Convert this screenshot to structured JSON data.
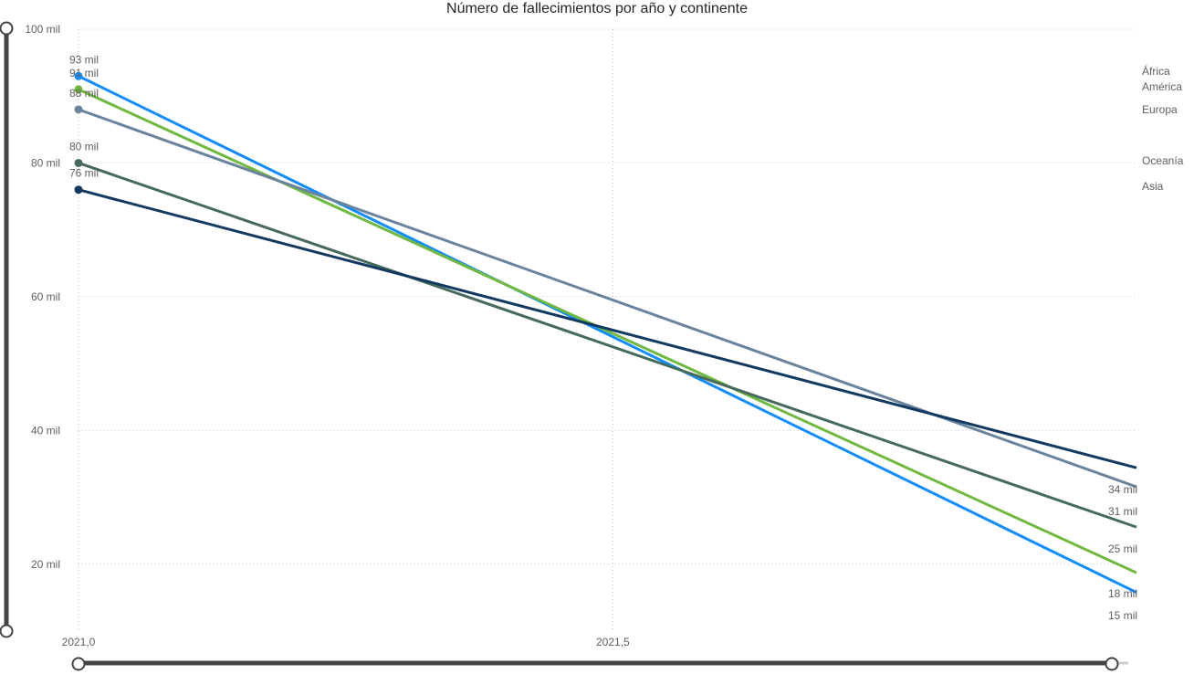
{
  "chart_data": {
    "type": "line",
    "title": "Número de fallecimientos por año y continente",
    "xlabel": "",
    "ylabel": "",
    "x": [
      2021.0,
      2022.0
    ],
    "x_ticks": [
      {
        "value": 2021.0,
        "label": "2021,0"
      },
      {
        "value": 2021.5,
        "label": "2021,5"
      }
    ],
    "y_ticks": [
      {
        "value": 20000,
        "label": "20 mil"
      },
      {
        "value": 40000,
        "label": "40 mil"
      },
      {
        "value": 60000,
        "label": "60 mil"
      },
      {
        "value": 80000,
        "label": "80 mil"
      },
      {
        "value": 100000,
        "label": "100 mil"
      }
    ],
    "xlim": [
      2021.0,
      2021.99
    ],
    "ylim": [
      10000,
      100000
    ],
    "grid": true,
    "legend": "right",
    "series": [
      {
        "name": "África",
        "color": "#118dff",
        "values": [
          93000,
          15000
        ],
        "labels": [
          "93 mil",
          "15 mil"
        ]
      },
      {
        "name": "América",
        "color": "#6fb93f",
        "values": [
          91000,
          18000
        ],
        "labels": [
          "91 mil",
          "18 mil"
        ]
      },
      {
        "name": "Europa",
        "color": "#6a849e",
        "values": [
          88000,
          31000
        ],
        "labels": [
          "88 mil",
          "31 mil"
        ]
      },
      {
        "name": "Oceanía",
        "color": "#466a5c",
        "values": [
          80000,
          25000
        ],
        "labels": [
          "80 mil",
          "25 mil"
        ]
      },
      {
        "name": "Asia",
        "color": "#12395f",
        "values": [
          76000,
          34000
        ],
        "labels": [
          "76 mil",
          "34 mil"
        ]
      }
    ]
  }
}
